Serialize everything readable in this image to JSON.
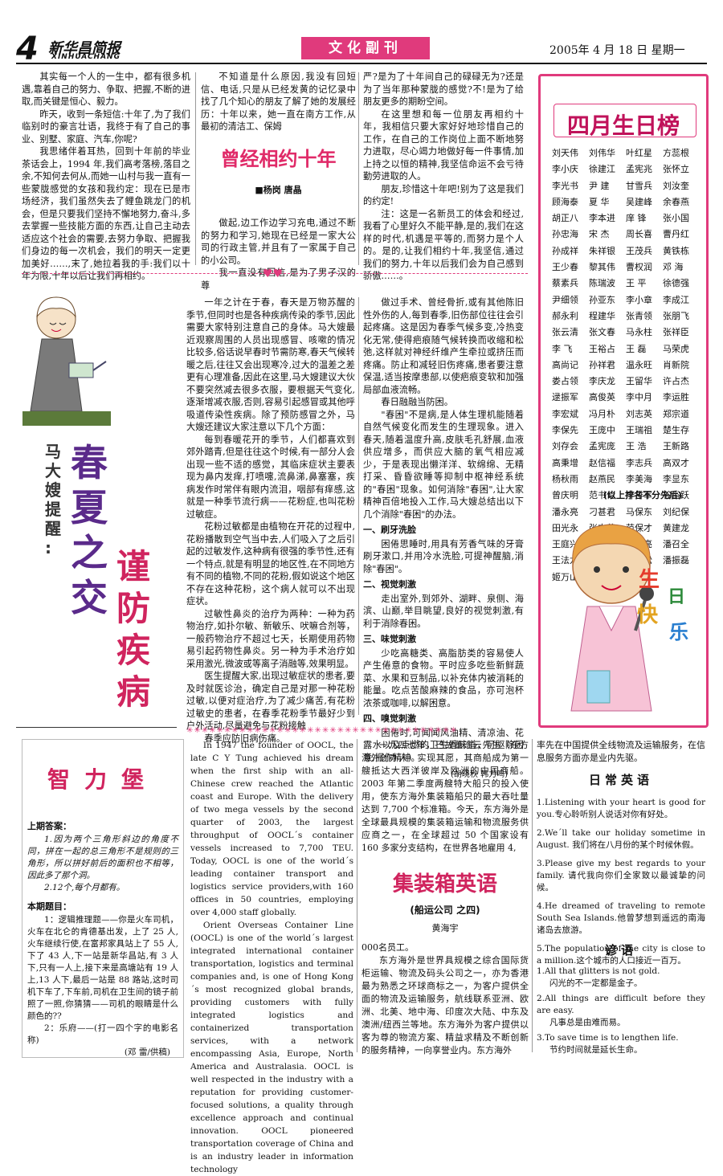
{
  "header": {
    "page_num": "4",
    "paper_name": "新华昌简报",
    "paper_name_en": "XINHUACHANG",
    "section": "文化副刊",
    "date": "2005年 4 月 18 日  星期一"
  },
  "article1": {
    "title": "曾经相约十年",
    "author": "■杨岗  唐晶",
    "col1": [
      "其实每一个人的一生中，都有很多机遇,靠着自己的努力、争取、把握,不断的进取,而关键是恒心、毅力。",
      "昨天，收到一条短信:十年了,为了我们临别时的豪言壮语，我终于有了自己的事业、别墅、家庭、汽车,你呢?",
      "我思绪伴着耳热，回到十年前的毕业茶话会上，1994 年,我们高考落榜,落目之余,不知何去何从,而她一山村与我一直有一些蒙胧感觉的女孩和我约定：现在已是市场经济，我们虽然失去了鲤鱼跳龙门的机会，但是只要我们坚持不懈地努力,奋斗,多去掌握一些技能方面的东西,让自己主动去适应这个社会的需要,去努力争取、把握我们身边的每一次机会，我们的明天一定更加美好……,末了,她拉着我的手:我们以十年为限,十年以后让我们再相约。"
    ],
    "col2a": [
      "不知道是什么原因,我没有回短信、电话,只是从已经发黄的记忆录中找了几个知心的朋友了解了她的发展经历：十年以来，她一直在南方工作,从最初的清洁工、保姆"
    ],
    "col2b": [
      "做起,边工作边学习充电,通过不断的努力和学习,她现在已经是一家大公司的行政主管,并且有了一家属于自己的小公司。",
      "我一直没有回信,是为了男子汉的尊"
    ],
    "col3": [
      "严?是为了十年间自己的碌碌无为?还是为了当年那种蒙胧的感觉?不!是为了给朋友更多的期盼空间。",
      "在这里想和每一位朋友再相约十年，我相信只要大家好好地珍惜自己的工作，在自己的工作岗位上面不断地努力进取，尽心竭力地做好每一件事情,加上持之以恒的精神,我坚信命运不会亏待勤劳进取的人。",
      "朋友,珍惜这十年吧!别为了这是我们的约定!",
      "注：这是一名新员工的体会和经过,我看了心里好久不能平静,是的,我们在这样的时代,机遇是平等的,而努力是个人的。是的,让我们相约十年,我坚信,通过我们的努力,十年以后我们会为自己感到骄傲……。"
    ]
  },
  "birthday": {
    "title": "四月生日榜",
    "names": [
      "刘天伟",
      "刘伟华",
      "叶红星",
      "方蕊根",
      "李小庆",
      "徐建江",
      "孟宪兆",
      "张怀立",
      "李光书",
      "尹 建",
      "甘雪兵",
      "刘汝奎",
      "顾海泰",
      "夏 华",
      "吴建峰",
      "余春燕",
      "胡正八",
      "李本进",
      "庠 锋",
      "张小国",
      "孙忠海",
      "宋 杰",
      "周长喜",
      "曹丹红",
      "孙成祥",
      "朱祥银",
      "王茂兵",
      "黄铁栋",
      "王少春",
      "黎其伟",
      "曹权润",
      "邓 海",
      "蔡素兵",
      "陈瑞波",
      "王 平",
      "徐德强",
      "尹细领",
      "孙亚东",
      "李小章",
      "李成江",
      "郝永利",
      "程建华",
      "张青领",
      "张朋飞",
      "张云清",
      "张文春",
      "马永柱",
      "张祥臣",
      "李 飞",
      "王裕占",
      "王 磊",
      "马荣虎",
      "高尚记",
      "孙祥君",
      "温永旺",
      "肖新院",
      "娄占领",
      "李庆龙",
      "王留华",
      "许占杰",
      "逯振军",
      "高俊英",
      "李中月",
      "李运胜",
      "李宏斌",
      "冯月朴",
      "刘志英",
      "郑宗道",
      "李保先",
      "王庞中",
      "王瑞祖",
      "楚生存",
      "刘存会",
      "孟宪庞",
      "王 浩",
      "王新路",
      "高秉增",
      "赵信福",
      "李志兵",
      "高双才",
      "杨秋雨",
      "赵燕民",
      "李美海",
      "李显东",
      "曾庆明",
      "范书伦",
      "李排军",
      "谷俗跃",
      "潘永亮",
      "刁甚君",
      "马保东",
      "刘纪保",
      "田光永",
      "张支黄",
      "范保才",
      "黄建龙",
      "王庭兴",
      "凌纪东",
      "董开亮",
      "潘召全",
      "王法龙",
      "黄 凯",
      "孙希松",
      "潘振磊",
      "姬万山"
    ],
    "note": "(以上排名不分先后)",
    "wish_chars": [
      "生",
      "日",
      "快",
      "乐"
    ]
  },
  "article2": {
    "title_chars1": [
      "春",
      "夏",
      "之",
      "交"
    ],
    "title_chars2": [
      "谨",
      "防",
      "疾",
      "病"
    ],
    "kicker_chars": [
      "马",
      "大",
      "嫂",
      "提",
      "醒",
      ":"
    ],
    "col1": [
      "一年之计在于春，春天是万物苏醒的季节,但同时也是各种疾病传染的季节,因此需要大家特别注意自己的身体。马大嫂最近观察周围的人员出现感冒、咳嗽的情况比较多,俗话说早春时节需防寒,春天气候转暖之后,往往又会出现寒冷,过大的温差之差更有心理准备,因此在这里,马大嫂建议大伙不要突然减去很多衣服，要根据天气变化,逐渐增减衣服,否则,容易引起感冒或其他呼吸道传染性疾病。除了预防感冒之外，马大嫂还建议大家注意以下几个方面：",
      "每到春暖花开的季节，人们都喜欢到郊外踏青,但是往往这个时候,有一部分人会出现一些不适的感觉，其临床症状主要表现为鼻内发痒,打喷嚏,流鼻涕,鼻塞塞，疾病发作时常伴有眼内流泪，咽部有痒感,这就是一种季节流行病——花粉症,也叫花粉过敏症。",
      "花粉过敏都是由植物在开花的过程中,花粉播散到空气当中去,人们吸入了之后引起的过敏发作,这种病有很强的季节性,还有一个特点,就是有明显的地区性,在不同地方有不同的植物,不同的花粉,假如说这个地区不存在这种花粉，这个病人就可以不出现症状。",
      "过敏性鼻炎的治疗为两种：一种为药物治疗,如扑尔敏、新敏乐、吠嘛合剂等，一般药物治疗不超过七天，长期使用药物易引起药物性鼻炎。另一种为手术治疗如采用激光,微波或等离子消融等,效果明显。",
      "医生提醒大家,出现过敏症状的患者,要及时就医诊治，确定自己是对那一种花粉过敏,以便对症治疗,为了减少痛苦,有花粉过敏史的患者，在春季花粉季节最好少到户外活动,尽量避免与花粉接触",
      "春季应防旧病伤痛。"
    ],
    "col2": [
      "做过手术、曾经骨折,或有其他陈旧性外伤的人,每到春季,旧伤部位往往会引起疼痛。这是因为春季气候多变,冷热变化无常,使得疤痕随气候转换而收缩和松弛,这样就对神经纤维产生牵拉或挤压而疼痛。防止和减轻旧伤疼痛,患者要注意保温,适当按摩患部,以使疤痕变软和加强局部血液流畅。",
      "春日融融当防困。",
      "\"春困\"不是病,是人体生理机能随着自然气候变化而发生的生理现象。进入春天,随着温度升高,皮肤毛孔舒展,血液供应增多，而供应大脑的氧气相应减少，于是表现出懒洋洋、软绵绵、无精打采、昏昏欲睡等抑制中枢神经系统的\"春困\"现象。如何消除\"春困\",让大家精神百倍地投入工作,马大嫂总结出以下几个消除\"春困\"的办法。"
    ],
    "subs": [
      {
        "h": "一、刷牙洗脸",
        "t": "困倦思睡时,用具有芳香气味的牙膏刷牙漱口,并用冷水洗脸,可提神醒脑,消除\"春困\"。"
      },
      {
        "h": "二、视觉刺激",
        "t": "走出室外,到郊外、湖畔、泉侧、海滨、山巅,举目眺望,良好的视觉刺激,有利于消除春困。"
      },
      {
        "h": "三、味觉刺激",
        "t": "少吃高糖类、高脂肪类的容易使人产生倦意的食物。平时应多吃些新鲜蔬菜、水果和豆制品,以补充体内被消耗的能量。吃点苦酸麻辣的食品，亦可泡杯浓茶或咖啡,以解困意。"
      },
      {
        "h": "四、嗅觉刺激",
        "t": "困倦时,可闻闻风油精、清凉油、花露水以及点燃的卫生香味道，可驱除困意,振作精神。"
      }
    ],
    "author": "(胡晓秋  韩力鸣)"
  },
  "puzzle": {
    "title": "智力堡",
    "last_answer_h": "上期答案：",
    "last_answer": [
      "1.因为两个三角形斜边的角度不同，拼在一起的总三角形不是规则的三角形，所以拼好前后的面积也不相等，因此多了那个洞。",
      "2.12个,每个月都有。"
    ],
    "this_h": "本期题目：",
    "q1": "1：逻辑推理题——你是火车司机，火车在北仑的肯德基出发，上了 25 人,火车继续行使,在富邦家具站上了 55 人,下了 43 人,下一站是新华昌站,有 3 人下,只有一人上,接下来是高塘站有 19 人上,13 人下,最后一站是 88 路站,这时司机下车了,下车前,司机在卫生间的镜子前照了一照,你猜猜——司机的眼睛是什么颜色的??",
    "q2": "2：乐府——(打一四个字的电影名称)",
    "q2_author": "(邓  雷/供稿)"
  },
  "english_article": {
    "paras": [
      "In 1947 the founder of OOCL, the late C Y Tung achieved his dream when the first ship with an all-Chinese crew reached the Atlantic coast and Europe. With the delivery of two mega vessels by the second quarter of 2003, the largest throughput of OOCL´s container vessels increased to 7,700 TEU. Today, OOCL is one of the world´s leading container transport and logistics service providers,with 160 offices in 50 countries, employing over 4,000 staff globally.",
      "Orient Overseas Container Line (OOCL) is one of the world´s largest integrated international container transportation, logistics and terminal companies and, is one of Hong Kong´s most recognized global brands, providing customers with fully integrated logistics and containerized transportation services, with a network encompassing Asia, Europe, North America and Australasia. OOCL is well respected in the industry with a reputation for providing customer-focused solutions, a quality through excellence approach and continual innovation.  OOCL pioneered transportation coverage of China and is an industry leader in information technology"
    ],
    "cn_col": [
      "一九四七年，已故董浩云先生（东方海外创办人）实现其愿，其商船成为第一艘抵达大西洋彼岸及欧洲的中国商船。2003 年第二季度两艘特大船只的投入使用，使东方海外集装箱船只的最大吞吐量达到 7,700 个标准箱。今天，东方海外是全球最具规模的集装箱运输和物流服务供应商之一，在全球超过 50 个国家设有 160 多家分支结构，在世界各地雇用 4,"
    ],
    "title": "集装箱英语",
    "subtitle": "(船运公司  之四)",
    "author": "黄海宇",
    "cn_col_b": [
      "000名员工。",
      "东方海外是世界具规模之综合国际货柜运输、物流及码头公司之一，亦为香港最为熟悉之环球商标之一，为客户提供全面的物流及运输服务，航线联系亚洲、欧洲、北美、地中海、印度次大陆、中东及澳洲/纽西兰等地。东方海外为客户提供以客为尊的物流方案、精益求精及不断创新的服务精神，一向享誉业内。东方海外"
    ],
    "cn_col_c": "率先在中国提供全线物流及运输服务，在信息服务方面亦是业内先驱。"
  },
  "daily_english": {
    "title": "日常英语",
    "items": [
      "1.Listening with your heart is good for you.专心聆听别人说话对你有好处。",
      "2.We´ll take our holiday sometime in August. 我们将在八月份的某个时候休假。",
      "3.Please give my best regards to your family. 请代我向你们全家致以最诚挚的问候。",
      "4.He dreamed of traveling to remote South Sea Islands.他曾梦想到遥远的南海诸岛去旅游。",
      "5.The population of the city is close to a million.这个城市的人口接近一百万。"
    ]
  },
  "proverbs": {
    "title": "谚语",
    "items": [
      {
        "en": "1.All that glitters is not gold.",
        "cn": "闪光的不一定都是金子。"
      },
      {
        "en": "2.All things are difficult before they are easy.",
        "cn": "凡事总是由难而易。"
      },
      {
        "en": "3.To save time is to lengthen life.",
        "cn": "节约时间就是延长生命。"
      }
    ]
  },
  "colors": {
    "accent": "#e03a7c",
    "text": "#111111"
  }
}
